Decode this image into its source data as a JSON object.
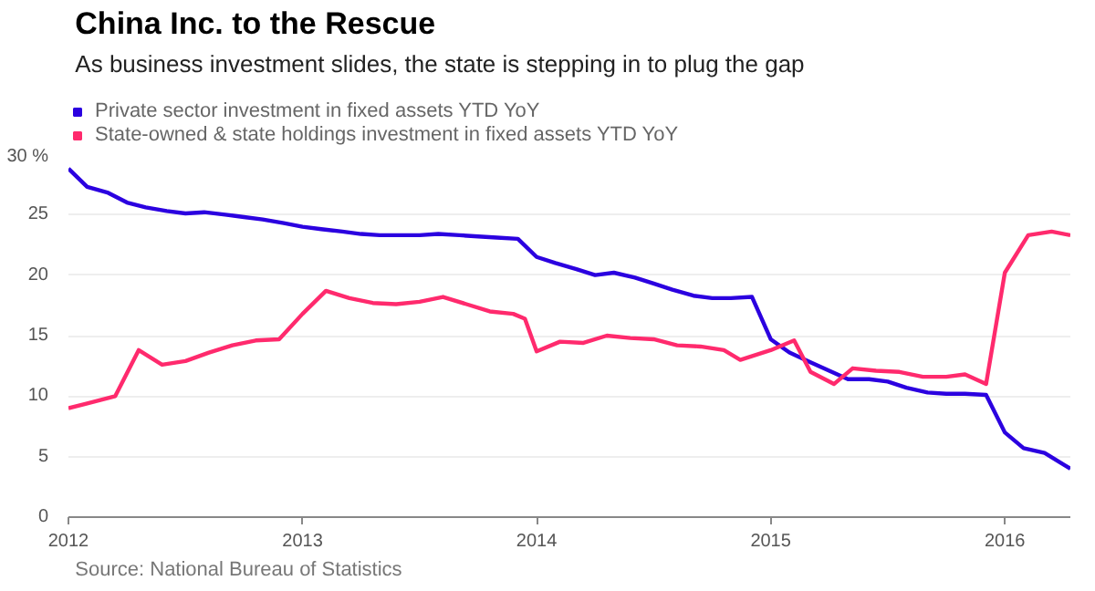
{
  "chart_data": {
    "type": "line",
    "title": "China Inc. to the Rescue",
    "subtitle": "As business investment slides, the state is stepping in to plug the gap",
    "xlim": [
      2012,
      2016.28
    ],
    "xticks": [
      2012,
      2013,
      2014,
      2015,
      2016
    ],
    "ylim": [
      0,
      30
    ],
    "yticks": [
      0,
      5,
      10,
      15,
      20,
      25,
      {
        "value": 30,
        "label": "30 %"
      }
    ],
    "grid": "y",
    "legend": "top left",
    "line_style": "solid",
    "annotations": [
      "Source: National Bureau of Statistics"
    ],
    "series": [
      {
        "name": "Private sector investment in fixed assets YTD YoY",
        "color": "#2b00e0",
        "x": [
          2012.0,
          2012.08,
          2012.17,
          2012.25,
          2012.33,
          2012.42,
          2012.5,
          2012.58,
          2012.67,
          2012.75,
          2012.83,
          2012.92,
          2013.0,
          2013.08,
          2013.17,
          2013.25,
          2013.33,
          2013.42,
          2013.5,
          2013.58,
          2013.67,
          2013.75,
          2013.83,
          2013.92,
          2014.0,
          2014.08,
          2014.17,
          2014.25,
          2014.33,
          2014.42,
          2014.5,
          2014.58,
          2014.67,
          2014.75,
          2014.83,
          2014.92,
          2015.0,
          2015.08,
          2015.17,
          2015.25,
          2015.33,
          2015.42,
          2015.5,
          2015.58,
          2015.67,
          2015.75,
          2015.83,
          2015.92,
          2016.0,
          2016.08,
          2016.17,
          2016.28
        ],
        "values": [
          28.8,
          27.3,
          26.8,
          26.0,
          25.6,
          25.3,
          25.1,
          25.2,
          25.0,
          24.8,
          24.6,
          24.3,
          24.0,
          23.8,
          23.6,
          23.4,
          23.3,
          23.3,
          23.3,
          23.4,
          23.3,
          23.2,
          23.1,
          23.0,
          21.5,
          21.0,
          20.5,
          20.0,
          20.2,
          19.8,
          19.3,
          18.8,
          18.3,
          18.1,
          18.1,
          18.2,
          14.7,
          13.6,
          12.8,
          12.1,
          11.4,
          11.4,
          11.2,
          10.7,
          10.3,
          10.2,
          10.2,
          10.1,
          7.0,
          5.7,
          5.3,
          4.0
        ]
      },
      {
        "name": "State-owned & state holdings investment in fixed assets YTD YoY",
        "color": "#ff2a6d",
        "x": [
          2012.0,
          2012.08,
          2012.2,
          2012.3,
          2012.4,
          2012.5,
          2012.6,
          2012.7,
          2012.8,
          2012.9,
          2013.0,
          2013.1,
          2013.2,
          2013.3,
          2013.4,
          2013.5,
          2013.6,
          2013.7,
          2013.8,
          2013.9,
          2013.95,
          2014.0,
          2014.1,
          2014.2,
          2014.3,
          2014.4,
          2014.5,
          2014.6,
          2014.7,
          2014.8,
          2014.87,
          2015.0,
          2015.1,
          2015.17,
          2015.27,
          2015.35,
          2015.45,
          2015.55,
          2015.65,
          2015.75,
          2015.83,
          2015.92,
          2016.0,
          2016.1,
          2016.2,
          2016.28
        ],
        "values": [
          9.0,
          9.4,
          10.0,
          13.8,
          12.6,
          12.9,
          13.6,
          14.2,
          14.6,
          14.7,
          16.8,
          18.7,
          18.1,
          17.7,
          17.6,
          17.8,
          18.2,
          17.6,
          17.0,
          16.8,
          16.4,
          13.7,
          14.5,
          14.4,
          15.0,
          14.8,
          14.7,
          14.2,
          14.1,
          13.8,
          13.0,
          13.8,
          14.6,
          12.0,
          11.0,
          12.3,
          12.1,
          12.0,
          11.6,
          11.6,
          11.8,
          11.0,
          20.2,
          23.3,
          23.6,
          23.3
        ]
      }
    ]
  }
}
